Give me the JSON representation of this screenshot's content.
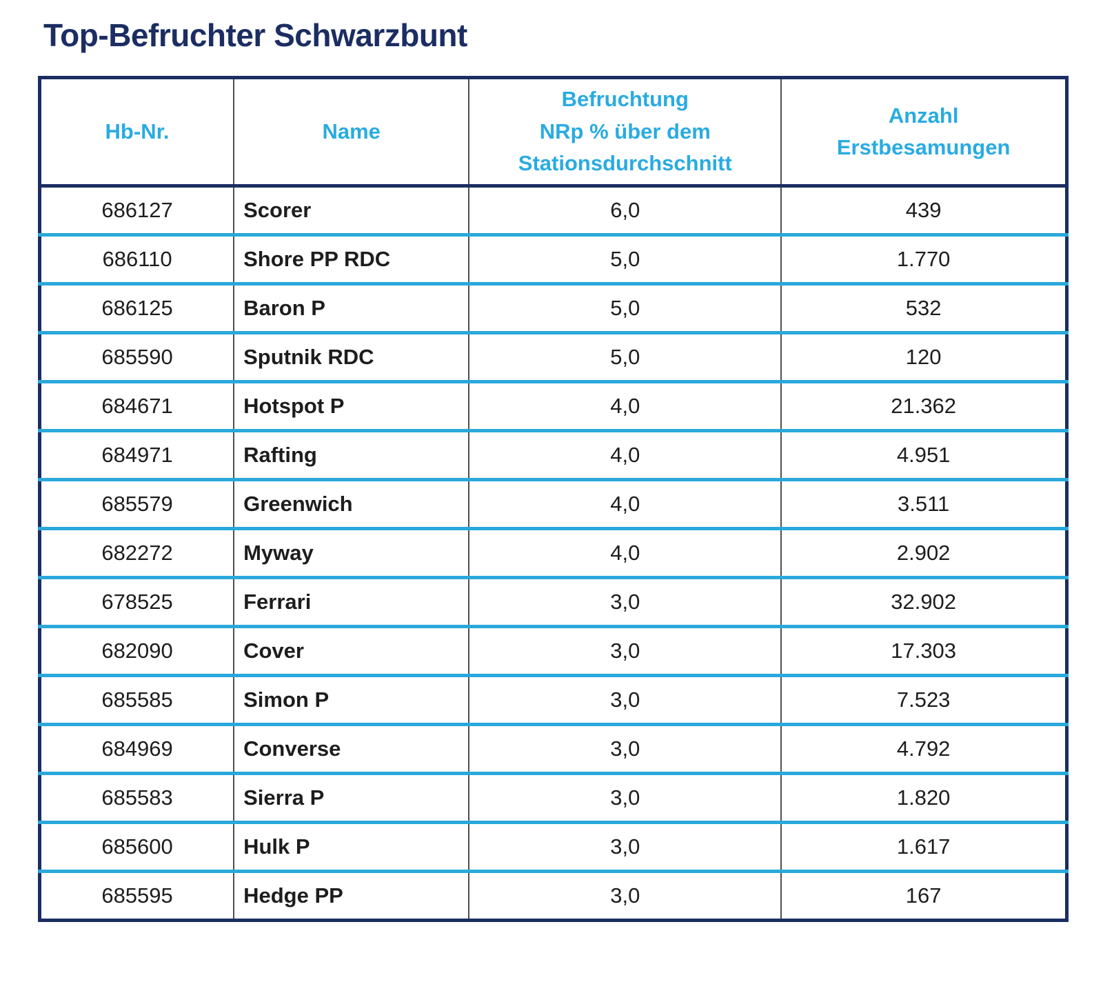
{
  "page": {
    "title": "Top-Befruchter Schwarzbunt"
  },
  "table": {
    "columns": [
      {
        "label": "Hb-Nr."
      },
      {
        "label": "Name"
      },
      {
        "label": "Befruchtung\nNRp % über dem\nStationsdurchschnitt"
      },
      {
        "label": "Anzahl\nErstbesamungen"
      }
    ],
    "rows": [
      {
        "hb_nr": "686127",
        "name": "Scorer",
        "nrp": "6,0",
        "erstbesamungen": "439"
      },
      {
        "hb_nr": "686110",
        "name": "Shore PP RDC",
        "nrp": "5,0",
        "erstbesamungen": "1.770"
      },
      {
        "hb_nr": "686125",
        "name": "Baron P",
        "nrp": "5,0",
        "erstbesamungen": "532"
      },
      {
        "hb_nr": "685590",
        "name": "Sputnik RDC",
        "nrp": "5,0",
        "erstbesamungen": "120"
      },
      {
        "hb_nr": "684671",
        "name": "Hotspot P",
        "nrp": "4,0",
        "erstbesamungen": "21.362"
      },
      {
        "hb_nr": "684971",
        "name": "Rafting",
        "nrp": "4,0",
        "erstbesamungen": "4.951"
      },
      {
        "hb_nr": "685579",
        "name": "Greenwich",
        "nrp": "4,0",
        "erstbesamungen": "3.511"
      },
      {
        "hb_nr": "682272",
        "name": "Myway",
        "nrp": "4,0",
        "erstbesamungen": "2.902"
      },
      {
        "hb_nr": "678525",
        "name": "Ferrari",
        "nrp": "3,0",
        "erstbesamungen": "32.902"
      },
      {
        "hb_nr": "682090",
        "name": "Cover",
        "nrp": "3,0",
        "erstbesamungen": "17.303"
      },
      {
        "hb_nr": "685585",
        "name": "Simon P",
        "nrp": "3,0",
        "erstbesamungen": "7.523"
      },
      {
        "hb_nr": "684969",
        "name": "Converse",
        "nrp": "3,0",
        "erstbesamungen": "4.792"
      },
      {
        "hb_nr": "685583",
        "name": "Sierra P",
        "nrp": "3,0",
        "erstbesamungen": "1.820"
      },
      {
        "hb_nr": "685600",
        "name": "Hulk P",
        "nrp": "3,0",
        "erstbesamungen": "1.617"
      },
      {
        "hb_nr": "685595",
        "name": "Hedge PP",
        "nrp": "3,0",
        "erstbesamungen": "167"
      }
    ]
  },
  "colors": {
    "navy": "#1b2d62",
    "cyan_text": "#29abe2",
    "cyan_line": "#29a8db",
    "cell_text": "#1d1d1d"
  }
}
